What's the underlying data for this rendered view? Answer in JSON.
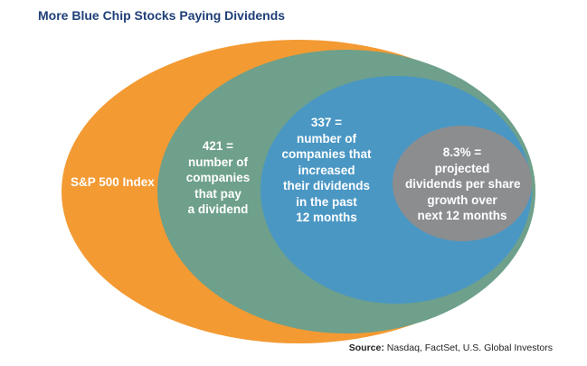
{
  "title": "More Blue Chip Stocks Paying Dividends",
  "colors": {
    "title": "#1f3f78",
    "outer": "#f39a33",
    "green": "#6ea08b",
    "blue": "#4a97c4",
    "gray": "#8c8d8f",
    "text": "#ffffff"
  },
  "circles": {
    "outer": {
      "label": "S&P 500 Index"
    },
    "green": {
      "lines": [
        "421 =",
        "number of",
        "companies",
        "that pay",
        "a dividend"
      ]
    },
    "blue": {
      "lines": [
        "337 =",
        "number of",
        "companies that",
        "increased",
        "their dividends",
        "in the past",
        "12 months"
      ]
    },
    "gray": {
      "lines": [
        "8.3% =",
        "projected",
        "dividends per share",
        "growth over",
        "next 12 months"
      ]
    }
  },
  "source": {
    "prefix": "Source:",
    "text": " Nasdaq, FactSet, U.S. Global Investors"
  }
}
